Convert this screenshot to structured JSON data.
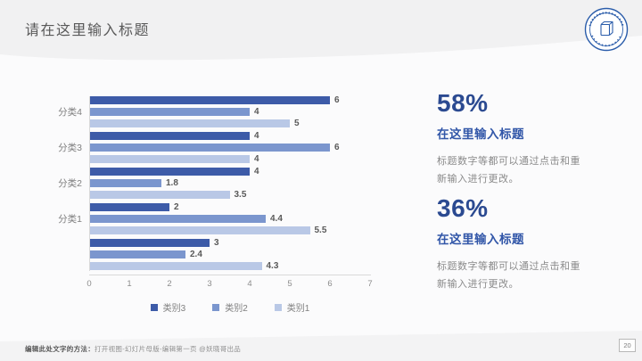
{
  "slide": {
    "title": "请在这里输入标题",
    "page_number": "20",
    "footer_bold": "编辑此处文字的方法：",
    "footer_rest": "打开视图-幻灯片母版-编辑第一页 @妖晓哥出品"
  },
  "logo": {
    "icon": "university-seal-logo",
    "color": "#2a5caa"
  },
  "chart_data": {
    "type": "bar",
    "orientation": "horizontal",
    "title": "",
    "categories": [
      "分类4",
      "分类3",
      "分类2",
      "分类1",
      ""
    ],
    "series": [
      {
        "name": "类别3",
        "color": "#3d5ba8",
        "values": [
          6,
          4,
          4,
          2,
          3
        ]
      },
      {
        "name": "类别2",
        "color": "#7b96ce",
        "values": [
          4,
          6,
          1.8,
          4.4,
          2.4
        ]
      },
      {
        "name": "类别1",
        "color": "#b9c8e6",
        "values": [
          5,
          4,
          3.5,
          5.5,
          4.3
        ]
      }
    ],
    "xlim": [
      0,
      7
    ],
    "xticks": [
      0,
      1,
      2,
      3,
      4,
      5,
      6,
      7
    ],
    "value_labels": true,
    "grid": false,
    "legend_position": "bottom",
    "axis_color": "#d9d9d9",
    "label_color": "#7f7f7f"
  },
  "stats": [
    {
      "value": "58%",
      "title": "在这里输入标题",
      "desc": "标题数字等都可以通过点击和重新输入进行更改。"
    },
    {
      "value": "36%",
      "title": "在这里输入标题",
      "desc": "标题数字等都可以通过点击和重新输入进行更改。"
    }
  ],
  "colors": {
    "header_band": "#f1f1f2",
    "footer_band": "#f3f3f4",
    "title_text": "#595959",
    "stat_value": "#2b4a91",
    "stat_title": "#3156a8",
    "desc_text": "#8a8a8a"
  }
}
